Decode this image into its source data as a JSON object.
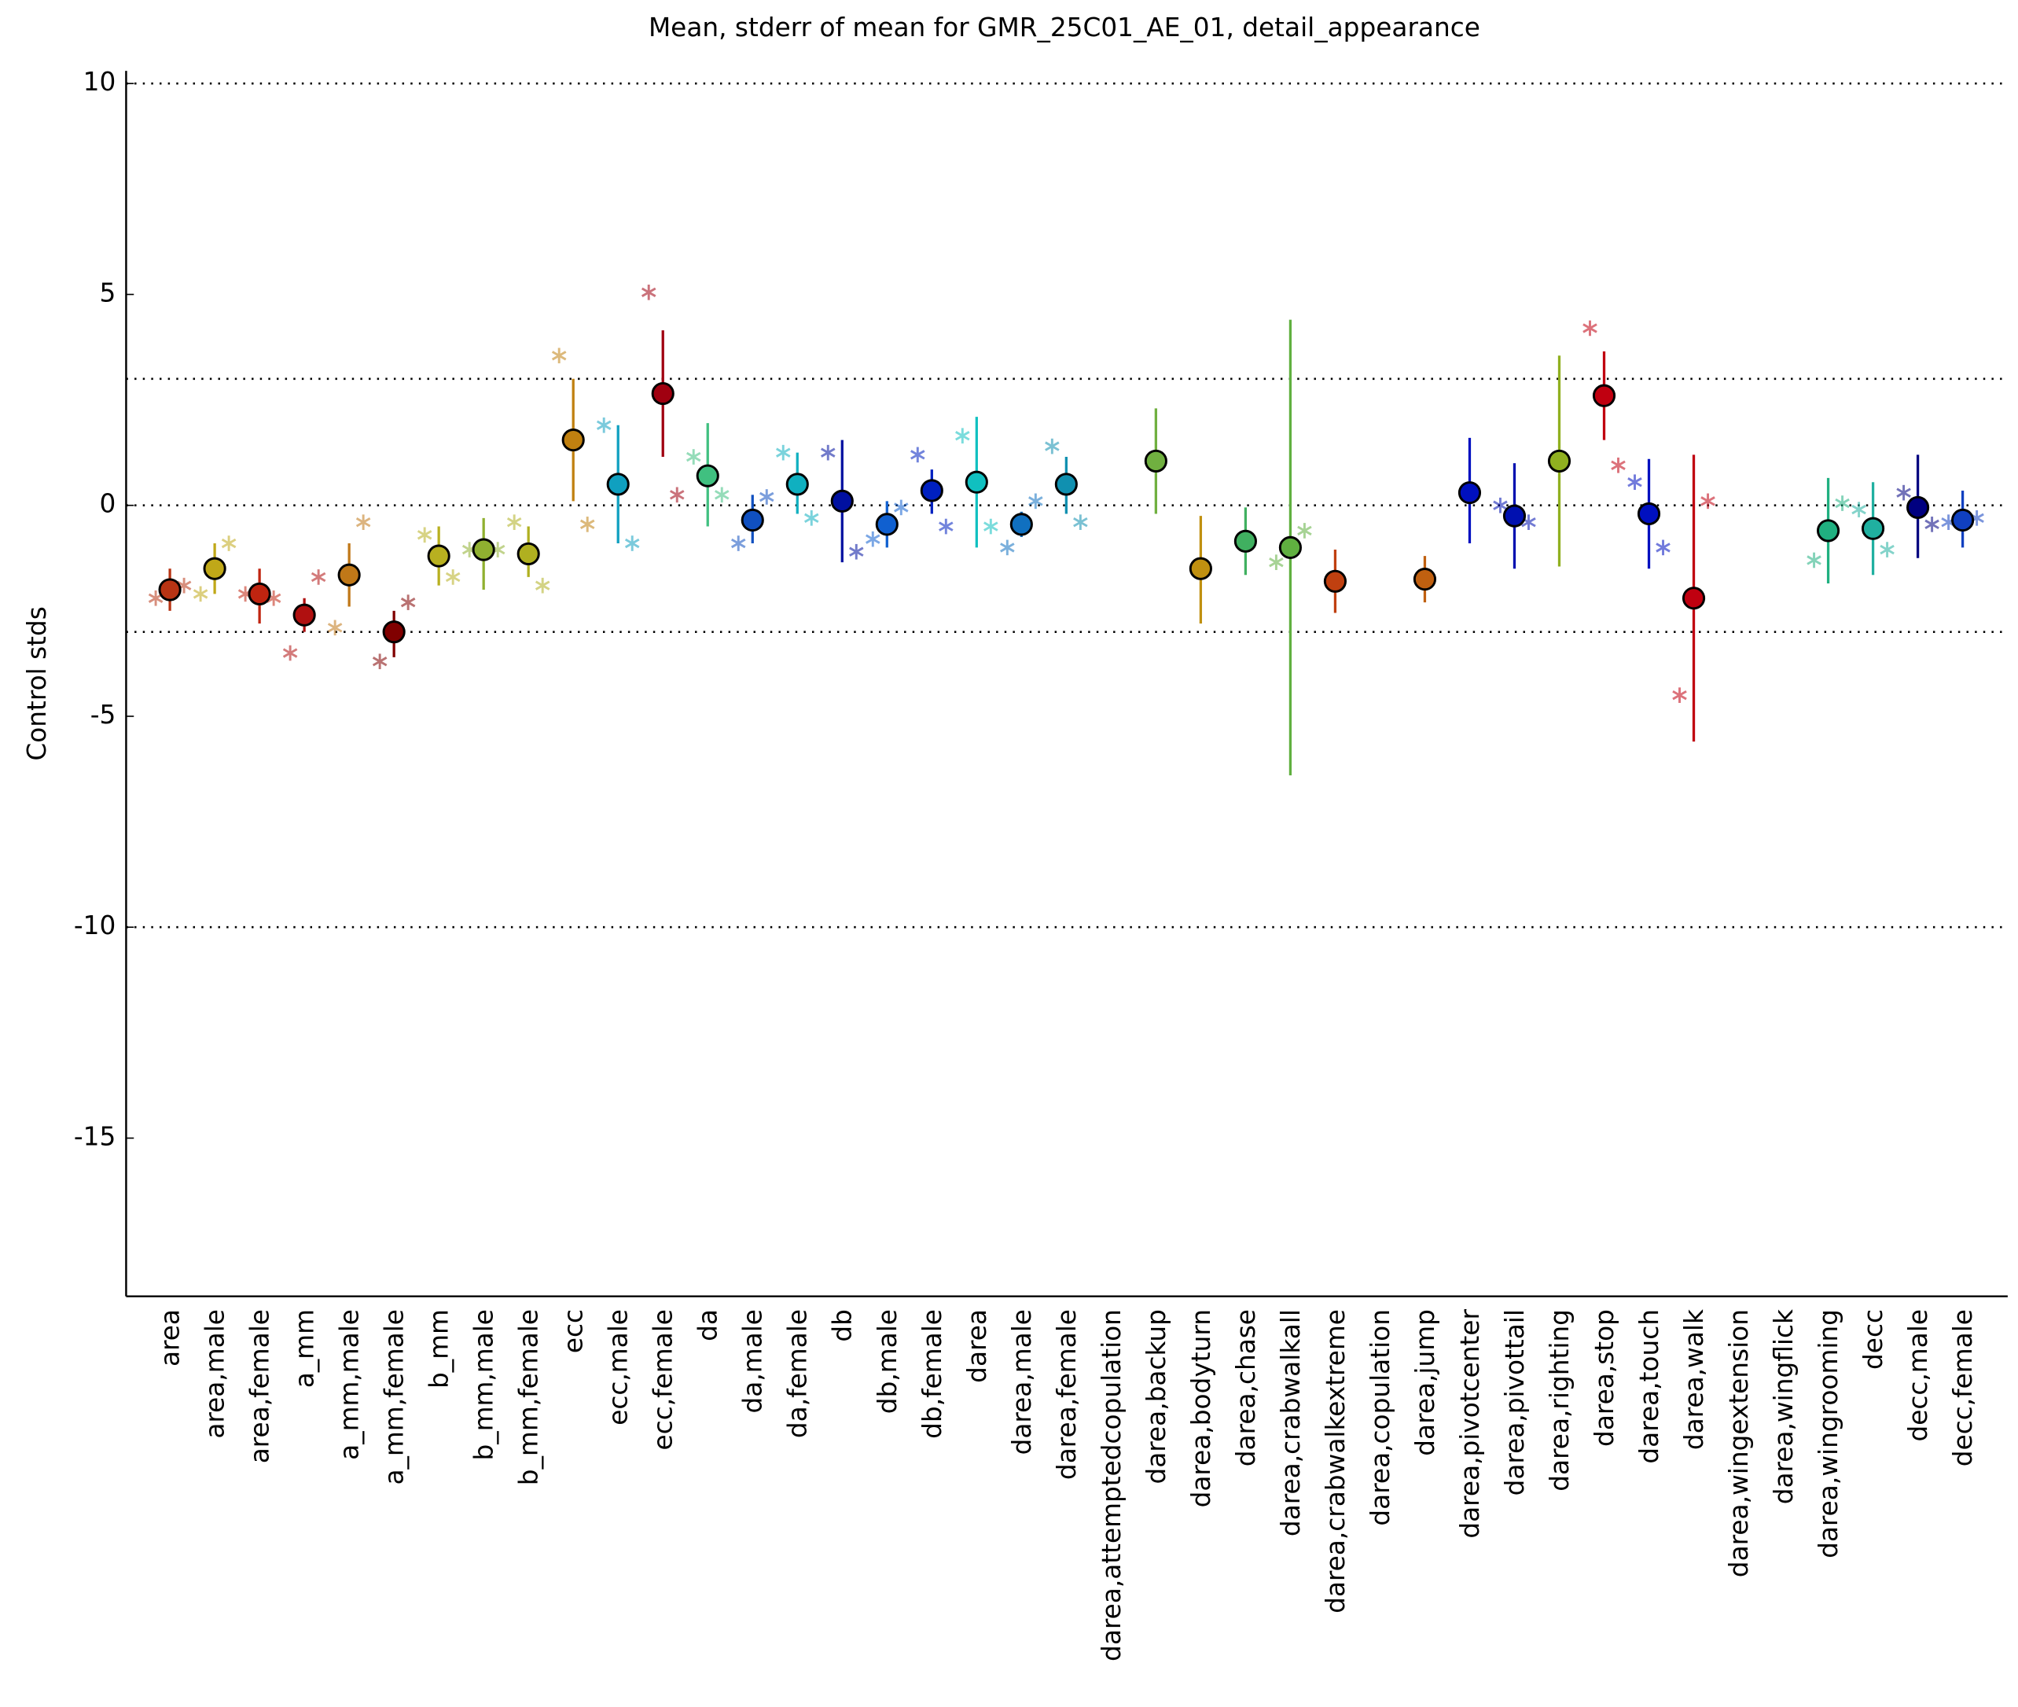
{
  "chart_data": {
    "type": "errorbar",
    "title": "Mean, stderr of mean for GMR_25C01_AE_01, detail_appearance",
    "ylabel": "Control stds",
    "ylim": [
      -18.75,
      10.3
    ],
    "yticks": [
      -15,
      -10,
      -5,
      0,
      5,
      10
    ],
    "grid_lines": [
      -10,
      -3,
      0,
      3,
      10
    ],
    "categories": [
      "area",
      "area,male",
      "area,female",
      "a_mm",
      "a_mm,male",
      "a_mm,female",
      "b_mm",
      "b_mm,male",
      "b_mm,female",
      "ecc",
      "ecc,male",
      "ecc,female",
      "da",
      "da,male",
      "da,female",
      "db",
      "db,male",
      "db,female",
      "darea",
      "darea,male",
      "darea,female",
      "darea,attemptedcopulation",
      "darea,backup",
      "darea,bodyturn",
      "darea,chase",
      "darea,crabwalkall",
      "darea,crabwalkextreme",
      "darea,copulation",
      "darea,jump",
      "darea,pivotcenter",
      "darea,pivottail",
      "darea,righting",
      "darea,stop",
      "darea,touch",
      "darea,walk",
      "darea,wingextension",
      "darea,wingflick",
      "darea,wingrooming",
      "decc",
      "decc,male",
      "decc,female"
    ],
    "colors": [
      "#b83414",
      "#c0a818",
      "#c02410",
      "#b01010",
      "#c07818",
      "#800000",
      "#b8b020",
      "#90b030",
      "#b0b020",
      "#c08010",
      "#10a0c0",
      "#a00010",
      "#40c080",
      "#1050c0",
      "#10b0c0",
      "#0010a0",
      "#1060d0",
      "#0020c0",
      "#10c0c0",
      "#1070c0",
      "#1090b0",
      "#909090",
      "#70b040",
      "#c09010",
      "#40b060",
      "#60b040",
      "#c04010",
      "#909090",
      "#c06010",
      "#0010c0",
      "#0010b0",
      "#90b020",
      "#c00010",
      "#0010c0",
      "#c00010",
      "#909090",
      "#909090",
      "#20b080",
      "#20b0a0",
      "#000080",
      "#1040c0"
    ],
    "values": [
      -2.0,
      -1.5,
      -2.1,
      -2.6,
      -1.65,
      -3.0,
      -1.2,
      -1.05,
      -1.15,
      1.55,
      0.5,
      2.65,
      0.7,
      -0.35,
      0.5,
      0.1,
      -0.45,
      0.35,
      0.55,
      -0.45,
      0.5,
      null,
      1.05,
      -1.5,
      -0.85,
      -1.0,
      -1.8,
      null,
      -1.75,
      0.3,
      -0.25,
      1.05,
      2.6,
      -0.2,
      -2.2,
      null,
      null,
      -0.6,
      -0.55,
      -0.05,
      -0.35
    ],
    "err_low": [
      -2.5,
      -2.1,
      -2.8,
      -3.0,
      -2.4,
      -3.6,
      -1.9,
      -2.0,
      -1.7,
      0.1,
      -0.9,
      1.15,
      -0.5,
      -0.9,
      -0.2,
      -1.35,
      -1.0,
      -0.2,
      -1.0,
      -0.75,
      -0.2,
      null,
      -0.2,
      -2.8,
      -1.65,
      -6.4,
      -2.55,
      null,
      -2.3,
      -0.9,
      -1.5,
      -1.45,
      1.55,
      -1.5,
      -5.6,
      null,
      null,
      -1.85,
      -1.65,
      -1.25,
      -1.0
    ],
    "err_high": [
      -1.5,
      -0.9,
      -1.5,
      -2.2,
      -0.9,
      -2.5,
      -0.5,
      -0.3,
      -0.5,
      3.0,
      1.9,
      4.15,
      1.95,
      0.25,
      1.25,
      1.55,
      0.1,
      0.85,
      2.1,
      -0.15,
      1.15,
      null,
      2.3,
      -0.25,
      -0.05,
      4.4,
      -1.05,
      null,
      -1.2,
      1.6,
      1.0,
      3.55,
      3.65,
      1.1,
      1.2,
      null,
      null,
      0.65,
      0.55,
      1.2,
      0.35
    ],
    "asterisk_left": [
      -2.2,
      -2.1,
      -2.1,
      -3.5,
      -2.9,
      -3.7,
      -0.7,
      -1.05,
      -0.4,
      3.55,
      1.9,
      5.05,
      1.15,
      -0.9,
      1.25,
      1.25,
      -0.8,
      1.2,
      1.65,
      -1.0,
      1.4,
      null,
      null,
      null,
      null,
      -1.35,
      null,
      null,
      null,
      null,
      0.0,
      null,
      4.2,
      0.55,
      -4.5,
      null,
      null,
      -1.3,
      -0.1,
      0.3,
      -0.4
    ],
    "asterisk_right": [
      -1.9,
      -0.9,
      -2.2,
      -1.7,
      -0.4,
      -2.3,
      -1.7,
      -1.05,
      -1.9,
      -0.45,
      -0.9,
      0.25,
      0.25,
      0.2,
      -0.3,
      -1.1,
      -0.05,
      -0.5,
      -0.5,
      0.1,
      -0.4,
      null,
      null,
      null,
      null,
      -0.6,
      null,
      null,
      null,
      null,
      -0.4,
      null,
      0.95,
      -1.0,
      0.1,
      null,
      null,
      0.05,
      -1.05,
      -0.45,
      -0.3
    ]
  }
}
